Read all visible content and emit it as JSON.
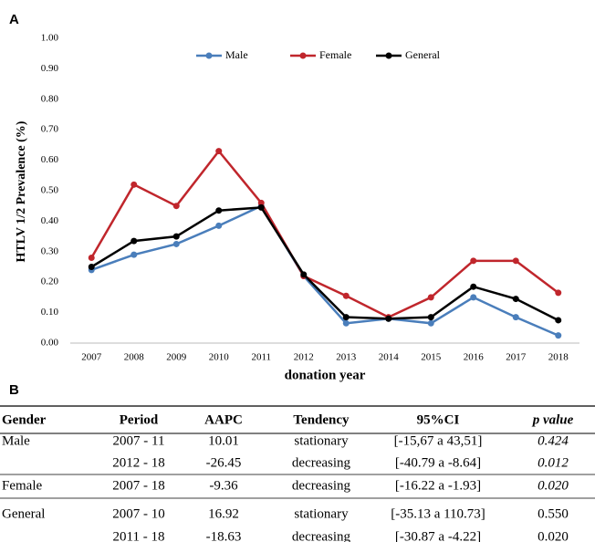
{
  "chart_data": {
    "type": "line",
    "panel_label": "A",
    "y_label": "HTLV 1/2 Prevalence (%)",
    "x_label": "donation year",
    "categories": [
      "2007",
      "2008",
      "2009",
      "2010",
      "2011",
      "2012",
      "2013",
      "2014",
      "2015",
      "2016",
      "2017",
      "2018"
    ],
    "series": [
      {
        "name": "Male",
        "color": "#4a7ebb",
        "values": [
          0.24,
          0.29,
          0.325,
          0.385,
          0.45,
          0.22,
          0.065,
          0.08,
          0.065,
          0.15,
          0.085,
          0.025
        ]
      },
      {
        "name": "Female",
        "color": "#c0262c",
        "values": [
          0.28,
          0.52,
          0.45,
          0.63,
          0.46,
          0.22,
          0.155,
          0.085,
          0.15,
          0.27,
          0.27,
          0.165
        ]
      },
      {
        "name": "General",
        "color": "#000000",
        "values": [
          0.25,
          0.335,
          0.35,
          0.435,
          0.445,
          0.225,
          0.085,
          0.08,
          0.085,
          0.185,
          0.145,
          0.075
        ]
      }
    ],
    "ylim": [
      0,
      1
    ],
    "yticks": [
      {
        "value": 0,
        "label": "0.00"
      },
      {
        "value": 0.1,
        "label": "0.10"
      },
      {
        "value": 0.2,
        "label": "0.20"
      },
      {
        "value": 0.3,
        "label": "0.30"
      },
      {
        "value": 0.4,
        "label": "0.40"
      },
      {
        "value": 0.5,
        "label": "0.50"
      },
      {
        "value": 0.6,
        "label": "0.60"
      },
      {
        "value": 0.7,
        "label": "0.70"
      },
      {
        "value": 0.8,
        "label": "0.80"
      },
      {
        "value": 0.9,
        "label": "0.90"
      },
      {
        "value": 1,
        "label": "1.00"
      }
    ],
    "grid": false,
    "legend": "top"
  },
  "table": {
    "panel_label": "B",
    "header": [
      "Gender",
      "Period",
      "AAPC",
      "Tendency",
      "95%CI",
      "p value"
    ],
    "groups": [
      {
        "gender": "Male",
        "rows": [
          [
            "2007 - 11",
            "10.01",
            "stationary",
            "[-15,67 a 43,51]",
            "0.424"
          ],
          [
            "2012 - 18",
            "-26.45",
            "decreasing",
            "[-40.79 a -8.64]",
            "0.012"
          ]
        ]
      },
      {
        "gender": "Female",
        "rows": [
          [
            "2007 - 18",
            "-9.36",
            "decreasing",
            "[-16.22 a -1.93]",
            "0.020"
          ]
        ]
      },
      {
        "gender": "General",
        "rows": [
          [
            "2007 - 10",
            "16.92",
            "stationary",
            "[-35.13 a 110.73]",
            "0.550"
          ],
          [
            "2011 - 18",
            "-18.63",
            "decreasing",
            "[-30.87 a -4.22]",
            "0.020"
          ]
        ]
      }
    ]
  }
}
